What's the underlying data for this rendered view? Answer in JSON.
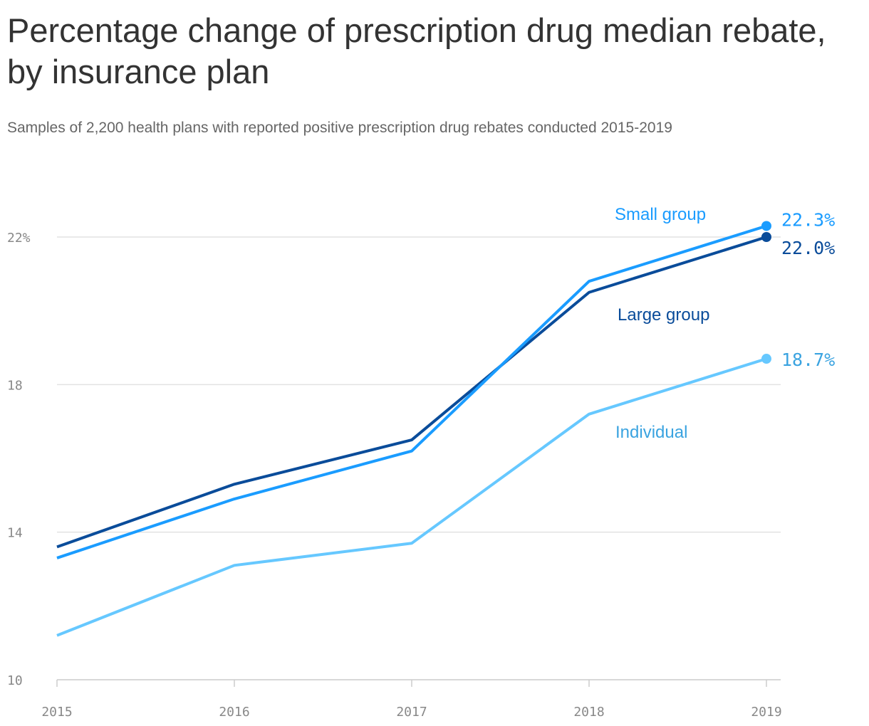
{
  "chart_data": {
    "type": "line",
    "title": "Percentage change of prescription drug median rebate, by insurance plan",
    "subtitle": "Samples of 2,200 health plans with reported positive prescription drug rebates conducted 2015-2019",
    "x": [
      2015,
      2016,
      2017,
      2018,
      2019
    ],
    "xticks": [
      "2015",
      "2016",
      "2017",
      "2018",
      "2019"
    ],
    "ylim": [
      10,
      22
    ],
    "yticks": [
      {
        "v": 10,
        "label": "10"
      },
      {
        "v": 14,
        "label": "14"
      },
      {
        "v": 18,
        "label": "18"
      },
      {
        "v": 22,
        "label": "22%"
      }
    ],
    "grid": "horizontal",
    "series": [
      {
        "name": "Individual",
        "values": [
          11.2,
          13.1,
          13.7,
          17.2,
          18.7
        ],
        "end_label": "18.7%",
        "color": "#66c8ff",
        "text_color": "#3aa3e0"
      },
      {
        "name": "Large group",
        "values": [
          13.6,
          15.3,
          16.5,
          20.5,
          22.0
        ],
        "end_label": "22.0%",
        "color": "#0a4c9a",
        "text_color": "#0a4c9a"
      },
      {
        "name": "Small group",
        "values": [
          13.3,
          14.9,
          16.2,
          20.8,
          22.3
        ],
        "end_label": "22.3%",
        "color": "#1a9cff",
        "text_color": "#1a9cff"
      }
    ]
  }
}
